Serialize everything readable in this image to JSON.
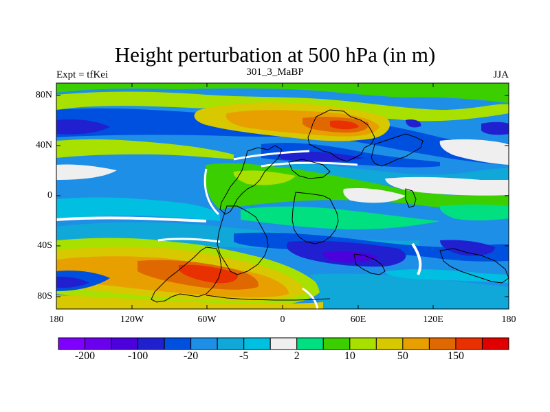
{
  "title": "Height perturbation at 500 hPa (in m)",
  "subtitle_left": "Expt = tfKei",
  "subtitle_center": "301_3_MaBP",
  "subtitle_right": "JJA",
  "map": {
    "projection": "cylindrical-equidistant",
    "lat_range": [
      -90,
      90
    ],
    "lon_range": [
      -180,
      180
    ],
    "lat_ticks": [
      "80N",
      "40N",
      "0",
      "40S",
      "80S"
    ],
    "lat_tick_values": [
      80,
      40,
      0,
      -40,
      -80
    ],
    "lon_ticks": [
      "180",
      "120W",
      "60W",
      "0",
      "60E",
      "120E",
      "180"
    ],
    "lon_tick_values": [
      -180,
      -120,
      -60,
      0,
      60,
      120,
      180
    ],
    "shown_feature": "filled contours of 500 hPa height perturbation with continental outlines"
  },
  "colorbar": {
    "colors": [
      "#7f00ff",
      "#6a00ee",
      "#4b00dc",
      "#2020d0",
      "#0050e0",
      "#1e8fe6",
      "#10a8d8",
      "#00bfe0",
      "#efefef",
      "#00e080",
      "#3ccf00",
      "#a8e000",
      "#d8c800",
      "#e8a000",
      "#e06800",
      "#e83000",
      "#e00000"
    ],
    "labels": [
      "-200",
      "-100",
      "-20",
      "-5",
      "2",
      "10",
      "50",
      "150"
    ],
    "label_boundary_index": [
      1,
      3,
      5,
      7,
      9,
      11,
      13,
      15
    ]
  }
}
